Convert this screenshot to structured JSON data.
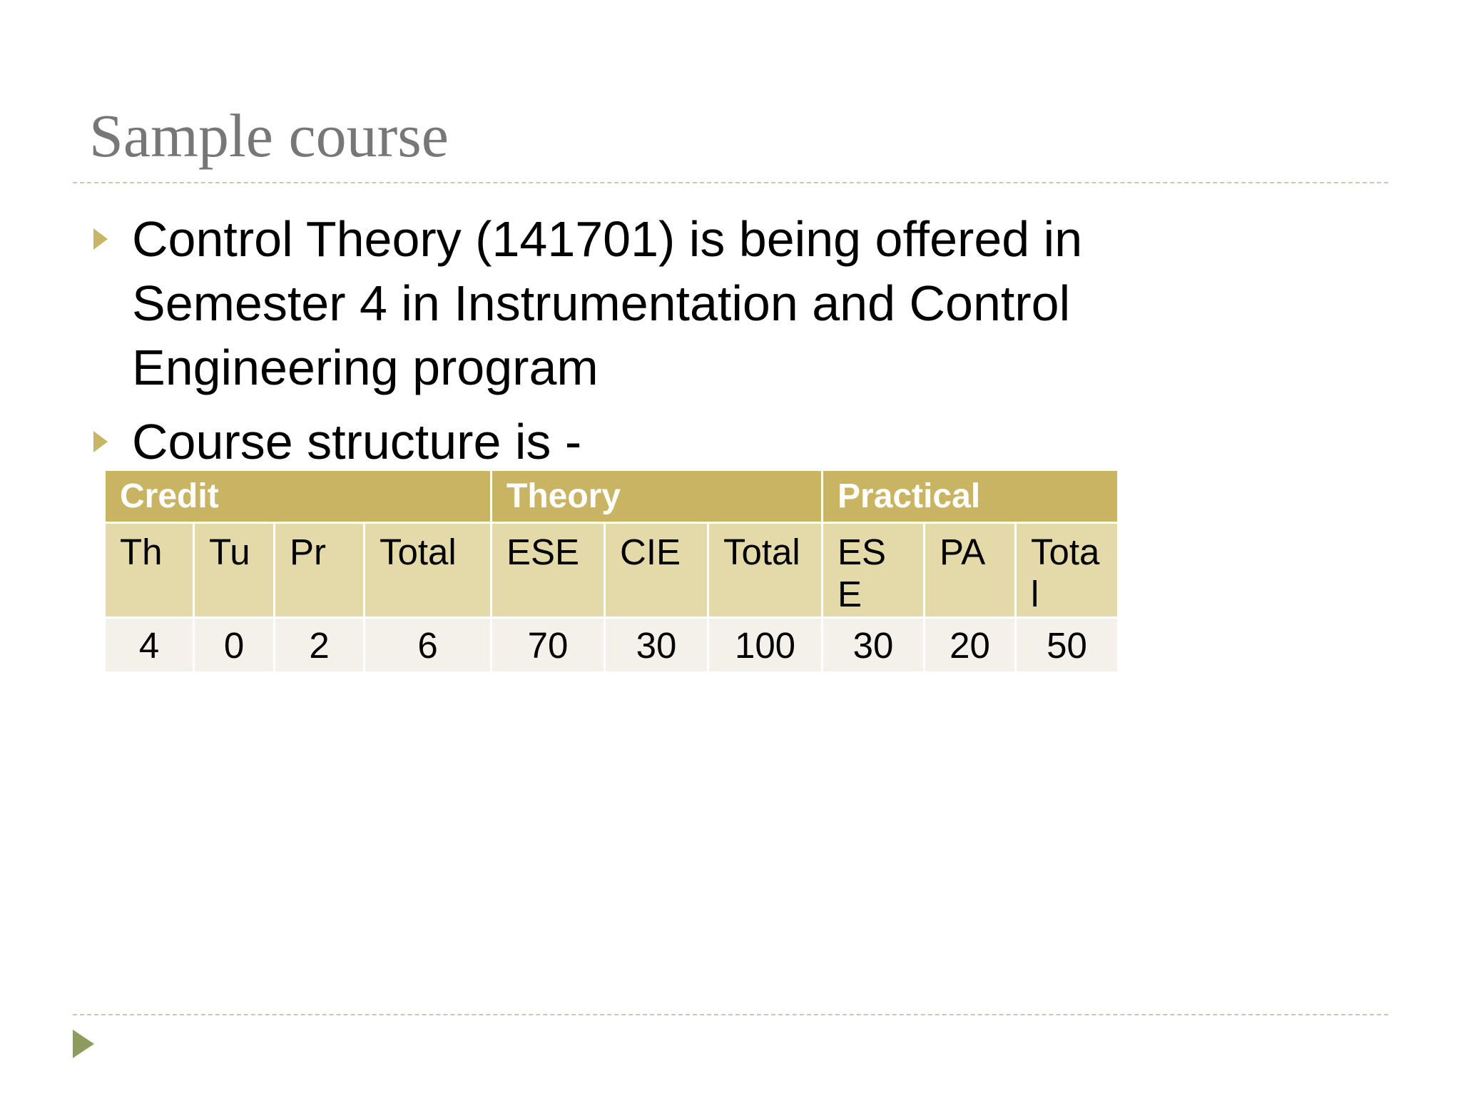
{
  "header": {
    "title": "Sample course"
  },
  "bullets": [
    "Control Theory (141701) is being offered in Semester 4 in Instrumentation and Control Engineering program",
    "Course structure is -"
  ],
  "table": {
    "groups": [
      {
        "label": "Credit",
        "span": 4
      },
      {
        "label": "Theory",
        "span": 3
      },
      {
        "label": "Practical",
        "span": 3
      }
    ],
    "columns": [
      "Th",
      "Tu",
      "Pr",
      "Total",
      "ESE",
      "CIE",
      "Total",
      "ESE",
      "PA",
      "Total"
    ],
    "values": [
      4,
      0,
      2,
      6,
      70,
      30,
      100,
      30,
      20,
      50
    ]
  }
}
